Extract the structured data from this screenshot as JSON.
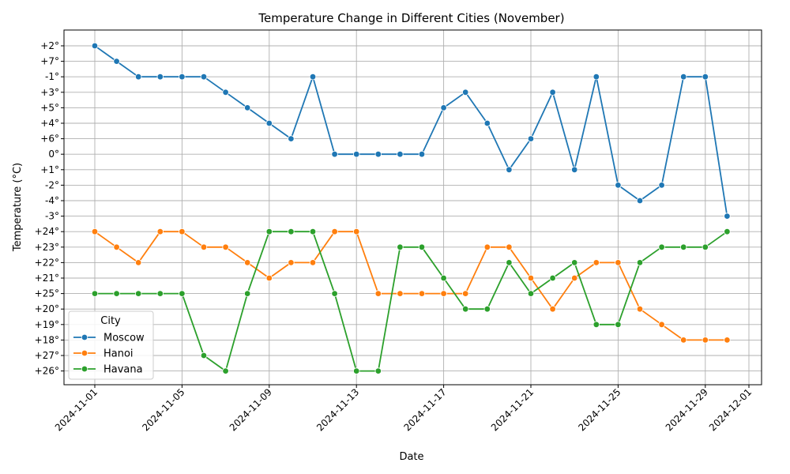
{
  "chart_data": {
    "type": "line",
    "title": "Temperature Change in Different Cities (November)",
    "xlabel": "Date",
    "ylabel": "Temperature (°C)",
    "x_ticks": [
      "2024-11-01",
      "2024-11-05",
      "2024-11-09",
      "2024-11-13",
      "2024-11-17",
      "2024-11-21",
      "2024-11-25",
      "2024-11-29",
      "2024-12-01"
    ],
    "x_dates": [
      "2024-11-01",
      "2024-11-02",
      "2024-11-03",
      "2024-11-04",
      "2024-11-05",
      "2024-11-06",
      "2024-11-07",
      "2024-11-08",
      "2024-11-09",
      "2024-11-10",
      "2024-11-11",
      "2024-11-12",
      "2024-11-13",
      "2024-11-14",
      "2024-11-15",
      "2024-11-16",
      "2024-11-17",
      "2024-11-18",
      "2024-11-19",
      "2024-11-20",
      "2024-11-21",
      "2024-11-22",
      "2024-11-23",
      "2024-11-24",
      "2024-11-25",
      "2024-11-26",
      "2024-11-27",
      "2024-11-28",
      "2024-11-29",
      "2024-11-30"
    ],
    "y_categories": [
      "+2°",
      "+7°",
      "-1°",
      "+3°",
      "+5°",
      "+4°",
      "+6°",
      "0°",
      "+1°",
      "-2°",
      "-4°",
      "-3°",
      "+24°",
      "+23°",
      "+22°",
      "+21°",
      "+25°",
      "+20°",
      "+19°",
      "+18°",
      "+27°",
      "+26°"
    ],
    "grid": true,
    "legend": {
      "title": "City",
      "position": "lower-left"
    },
    "series": [
      {
        "name": "Moscow",
        "color": "#1f77b4",
        "values": [
          "+2°",
          "+7°",
          "-1°",
          "-1°",
          "-1°",
          "-1°",
          "+3°",
          "+5°",
          "+4°",
          "+6°",
          "-1°",
          "0°",
          "0°",
          "0°",
          "0°",
          "0°",
          "+5°",
          "+3°",
          "+4°",
          "+1°",
          "+6°",
          "+3°",
          "+1°",
          "-1°",
          "-2°",
          "-4°",
          "-2°",
          "-1°",
          "-1°",
          "-3°"
        ]
      },
      {
        "name": "Hanoi",
        "color": "#ff7f0e",
        "values": [
          "+24°",
          "+23°",
          "+22°",
          "+24°",
          "+24°",
          "+23°",
          "+23°",
          "+22°",
          "+21°",
          "+22°",
          "+22°",
          "+24°",
          "+24°",
          "+25°",
          "+25°",
          "+25°",
          "+25°",
          "+25°",
          "+23°",
          "+23°",
          "+21°",
          "+20°",
          "+21°",
          "+22°",
          "+22°",
          "+20°",
          "+19°",
          "+18°",
          "+18°",
          "+18°"
        ]
      },
      {
        "name": "Havana",
        "color": "#2ca02c",
        "values": [
          "+25°",
          "+25°",
          "+25°",
          "+25°",
          "+25°",
          "+27°",
          "+26°",
          "+25°",
          "+24°",
          "+24°",
          "+24°",
          "+25°",
          "+26°",
          "+26°",
          "+23°",
          "+23°",
          "+21°",
          "+20°",
          "+20°",
          "+22°",
          "+25°",
          "+21°",
          "+22°",
          "+19°",
          "+19°",
          "+22°",
          "+23°",
          "+23°",
          "+23°",
          "+24°"
        ]
      }
    ]
  }
}
